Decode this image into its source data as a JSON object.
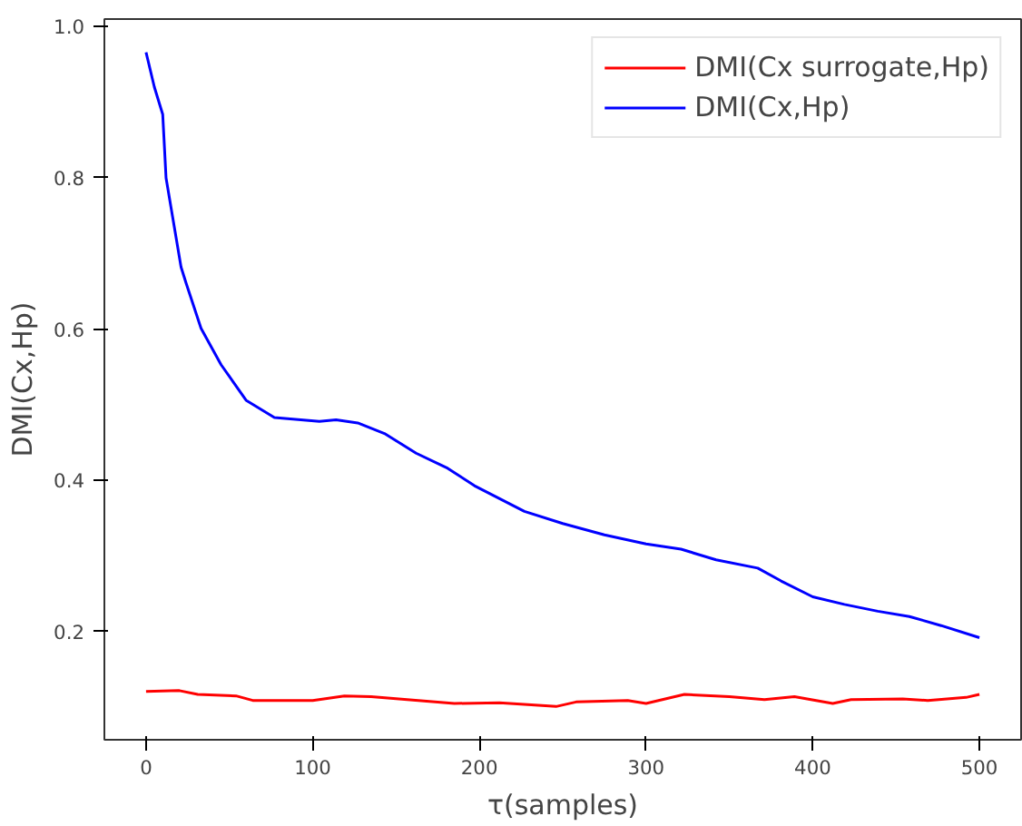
{
  "chart_data": {
    "type": "line",
    "xlabel": "τ(samples)",
    "ylabel": "DMI(Cx,Hp)",
    "xlim": [
      -25,
      525
    ],
    "xticks": [
      0,
      100,
      200,
      300,
      400,
      500
    ],
    "ylim": [
      0.057,
      1.01
    ],
    "yticks": [
      0.2,
      0.4,
      0.6,
      0.8,
      {
        "value": 1.0,
        "label": "1.0"
      }
    ],
    "grid": false,
    "legend": "top right",
    "line_style": "solid",
    "marker": "none",
    "series": [
      {
        "name": "DMI(Cx surrogate,Hp)",
        "color": "#ff0000",
        "x": [
          0,
          20,
          31,
          54,
          64,
          100,
          119,
          135,
          185,
          212,
          246,
          258,
          289,
          300,
          323,
          350,
          371,
          389,
          412,
          423,
          454,
          469,
          492,
          500
        ],
        "values": [
          0.121,
          0.122,
          0.117,
          0.115,
          0.109,
          0.109,
          0.115,
          0.114,
          0.105,
          0.106,
          0.101,
          0.107,
          0.109,
          0.105,
          0.117,
          0.114,
          0.11,
          0.114,
          0.105,
          0.11,
          0.111,
          0.109,
          0.113,
          0.117
        ]
      },
      {
        "name": "DMI(Cx,Hp)",
        "color": "#0000ff",
        "x": [
          0,
          5,
          10,
          12,
          21,
          24,
          33,
          45,
          60,
          77,
          104,
          114,
          127,
          143,
          162,
          181,
          197,
          227,
          250,
          275,
          300,
          321,
          342,
          367,
          381,
          400,
          419,
          439,
          458,
          477,
          500
        ],
        "values": [
          0.966,
          0.92,
          0.884,
          0.8,
          0.682,
          0.661,
          0.601,
          0.553,
          0.506,
          0.483,
          0.478,
          0.48,
          0.476,
          0.462,
          0.436,
          0.416,
          0.393,
          0.359,
          0.343,
          0.328,
          0.316,
          0.309,
          0.295,
          0.284,
          0.267,
          0.246,
          0.236,
          0.227,
          0.22,
          0.208,
          0.192
        ]
      }
    ]
  }
}
